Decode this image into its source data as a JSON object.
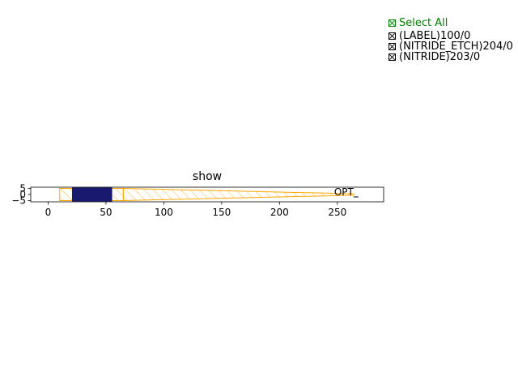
{
  "chart_data": {
    "type": "layout",
    "title": "show",
    "xlim": [
      -15,
      290
    ],
    "ylim": [
      -6,
      6
    ],
    "xticks": [
      0,
      50,
      100,
      150,
      200,
      250
    ],
    "yticks": [
      5,
      0,
      -5
    ],
    "xtick_labels": [
      "0",
      "50",
      "100",
      "150",
      "200",
      "250"
    ],
    "ytick_labels": [
      "5",
      "0",
      "−5"
    ],
    "shapes": [
      {
        "name": "nitride-block",
        "layer": "(NITRIDE)203/0",
        "kind": "filled-rect",
        "color": "#191970",
        "x0": 21,
        "x1": 55,
        "y0": -5.5,
        "y1": 5.5
      },
      {
        "name": "etch-rect",
        "layer": "(NITRIDE_ETCH)204/0",
        "kind": "hatched-rect",
        "color": "#FFA500",
        "x0": 10,
        "x1": 65,
        "y0": -5,
        "y1": 5
      },
      {
        "name": "taper",
        "layer": "(NITRIDE_ETCH)204/0",
        "kind": "hatched-polygon",
        "color": "#FFA500",
        "points": [
          [
            65,
            5
          ],
          [
            264,
            0.6
          ],
          [
            264,
            -0.6
          ],
          [
            65,
            -5
          ]
        ]
      }
    ],
    "port_label": {
      "text": "OPT",
      "x": 264,
      "y": 1.5
    },
    "port_marker": {
      "x": 264,
      "y": 0
    }
  },
  "layer_panel": {
    "select_all": "Select All",
    "layers": [
      "(LABEL)100/0",
      "(NITRIDE_ETCH)204/0",
      "(NITRIDE)203/0"
    ]
  }
}
